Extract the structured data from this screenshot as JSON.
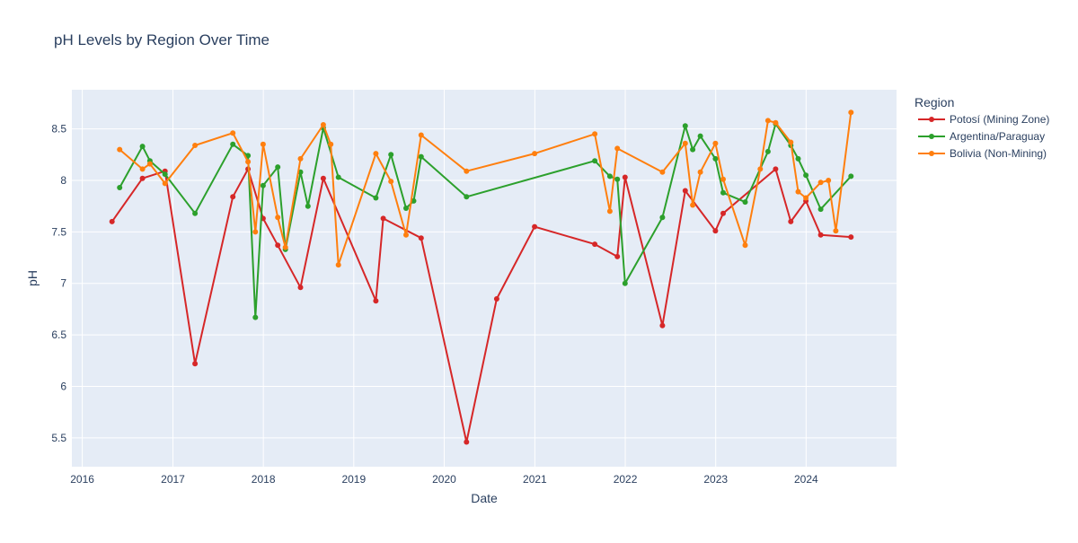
{
  "chart_data": {
    "type": "line",
    "title": "pH Levels by Region Over Time",
    "xlabel": "Date",
    "ylabel": "pH",
    "xlim": [
      "2015-11-20",
      "2024-12-31"
    ],
    "ylim": [
      5.22,
      8.88
    ],
    "x_ticks": [
      {
        "label": "2016",
        "date": "2016-01-01"
      },
      {
        "label": "2017",
        "date": "2017-01-01"
      },
      {
        "label": "2018",
        "date": "2018-01-01"
      },
      {
        "label": "2019",
        "date": "2019-01-01"
      },
      {
        "label": "2020",
        "date": "2020-01-01"
      },
      {
        "label": "2021",
        "date": "2021-01-01"
      },
      {
        "label": "2022",
        "date": "2022-01-01"
      },
      {
        "label": "2023",
        "date": "2023-01-01"
      },
      {
        "label": "2024",
        "date": "2024-01-01"
      }
    ],
    "y_ticks": [
      {
        "label": "5.5",
        "value": 5.5
      },
      {
        "label": "6",
        "value": 6
      },
      {
        "label": "6.5",
        "value": 6.5
      },
      {
        "label": "7",
        "value": 7
      },
      {
        "label": "7.5",
        "value": 7.5
      },
      {
        "label": "8",
        "value": 8
      },
      {
        "label": "8.5",
        "value": 8.5
      }
    ],
    "grid": true,
    "legend": {
      "title": "Region",
      "position": "top-right"
    },
    "series": [
      {
        "name": "Potosí (Mining Zone)",
        "color": "#d62728",
        "points": [
          [
            "2016-04-30",
            7.6
          ],
          [
            "2016-08-31",
            8.02
          ],
          [
            "2016-11-30",
            8.09
          ],
          [
            "2017-03-31",
            6.22
          ],
          [
            "2017-08-31",
            7.84
          ],
          [
            "2017-10-31",
            8.11
          ],
          [
            "2017-12-31",
            7.63
          ],
          [
            "2018-02-28",
            7.37
          ],
          [
            "2018-05-31",
            6.96
          ],
          [
            "2018-08-31",
            8.02
          ],
          [
            "2019-03-31",
            6.83
          ],
          [
            "2019-04-30",
            7.63
          ],
          [
            "2019-09-30",
            7.44
          ],
          [
            "2020-03-31",
            5.46
          ],
          [
            "2020-07-31",
            6.85
          ],
          [
            "2020-12-31",
            7.55
          ],
          [
            "2021-08-31",
            7.38
          ],
          [
            "2021-11-30",
            7.26
          ],
          [
            "2021-12-31",
            8.03
          ],
          [
            "2022-05-31",
            6.59
          ],
          [
            "2022-08-31",
            7.9
          ],
          [
            "2022-12-31",
            7.51
          ],
          [
            "2023-01-31",
            7.68
          ],
          [
            "2023-08-31",
            8.11
          ],
          [
            "2023-10-31",
            7.6
          ],
          [
            "2023-12-31",
            7.8
          ],
          [
            "2024-02-29",
            7.47
          ],
          [
            "2024-06-30",
            7.45
          ]
        ]
      },
      {
        "name": "Argentina/Paraguay",
        "color": "#2ca02c",
        "points": [
          [
            "2016-05-31",
            7.93
          ],
          [
            "2016-08-31",
            8.33
          ],
          [
            "2016-09-30",
            8.19
          ],
          [
            "2016-11-30",
            8.06
          ],
          [
            "2017-03-31",
            7.68
          ],
          [
            "2017-08-31",
            8.35
          ],
          [
            "2017-10-31",
            8.24
          ],
          [
            "2017-11-30",
            6.67
          ],
          [
            "2017-12-31",
            7.95
          ],
          [
            "2018-02-28",
            8.13
          ],
          [
            "2018-03-31",
            7.33
          ],
          [
            "2018-05-31",
            8.08
          ],
          [
            "2018-06-30",
            7.75
          ],
          [
            "2018-08-31",
            8.51
          ],
          [
            "2018-10-31",
            8.03
          ],
          [
            "2019-03-31",
            7.83
          ],
          [
            "2019-05-31",
            8.25
          ],
          [
            "2019-07-31",
            7.73
          ],
          [
            "2019-08-31",
            7.8
          ],
          [
            "2019-09-30",
            8.23
          ],
          [
            "2020-03-31",
            7.84
          ],
          [
            "2021-08-31",
            8.19
          ],
          [
            "2021-10-31",
            8.04
          ],
          [
            "2021-11-30",
            8.01
          ],
          [
            "2021-12-31",
            7.0
          ],
          [
            "2022-05-31",
            7.64
          ],
          [
            "2022-08-31",
            8.53
          ],
          [
            "2022-09-30",
            8.3
          ],
          [
            "2022-10-31",
            8.43
          ],
          [
            "2022-12-31",
            8.21
          ],
          [
            "2023-01-31",
            7.88
          ],
          [
            "2023-04-30",
            7.79
          ],
          [
            "2023-07-31",
            8.28
          ],
          [
            "2023-08-31",
            8.55
          ],
          [
            "2023-10-31",
            8.34
          ],
          [
            "2023-11-30",
            8.21
          ],
          [
            "2023-12-31",
            8.05
          ],
          [
            "2024-02-29",
            7.72
          ],
          [
            "2024-06-30",
            8.04
          ]
        ]
      },
      {
        "name": "Bolivia (Non-Mining)",
        "color": "#ff7f0e",
        "points": [
          [
            "2016-05-31",
            8.3
          ],
          [
            "2016-08-31",
            8.11
          ],
          [
            "2016-09-30",
            8.16
          ],
          [
            "2016-11-30",
            7.97
          ],
          [
            "2017-03-31",
            8.34
          ],
          [
            "2017-08-31",
            8.46
          ],
          [
            "2017-10-31",
            8.18
          ],
          [
            "2017-11-30",
            7.5
          ],
          [
            "2017-12-31",
            8.35
          ],
          [
            "2018-02-28",
            7.64
          ],
          [
            "2018-03-31",
            7.35
          ],
          [
            "2018-05-31",
            8.21
          ],
          [
            "2018-08-31",
            8.54
          ],
          [
            "2018-09-30",
            8.35
          ],
          [
            "2018-10-31",
            7.18
          ],
          [
            "2019-03-31",
            8.26
          ],
          [
            "2019-05-31",
            7.99
          ],
          [
            "2019-07-31",
            7.47
          ],
          [
            "2019-09-30",
            8.44
          ],
          [
            "2020-03-31",
            8.09
          ],
          [
            "2020-12-31",
            8.26
          ],
          [
            "2021-08-31",
            8.45
          ],
          [
            "2021-10-31",
            7.7
          ],
          [
            "2021-11-30",
            8.31
          ],
          [
            "2022-05-31",
            8.08
          ],
          [
            "2022-08-31",
            8.36
          ],
          [
            "2022-09-30",
            7.76
          ],
          [
            "2022-10-31",
            8.08
          ],
          [
            "2022-12-31",
            8.36
          ],
          [
            "2023-01-31",
            8.01
          ],
          [
            "2023-04-30",
            7.37
          ],
          [
            "2023-06-30",
            8.11
          ],
          [
            "2023-07-31",
            8.58
          ],
          [
            "2023-08-31",
            8.56
          ],
          [
            "2023-10-31",
            8.37
          ],
          [
            "2023-11-30",
            7.89
          ],
          [
            "2023-12-31",
            7.83
          ],
          [
            "2024-02-29",
            7.98
          ],
          [
            "2024-03-31",
            8.0
          ],
          [
            "2024-04-30",
            7.51
          ],
          [
            "2024-06-30",
            8.66
          ]
        ]
      }
    ]
  }
}
